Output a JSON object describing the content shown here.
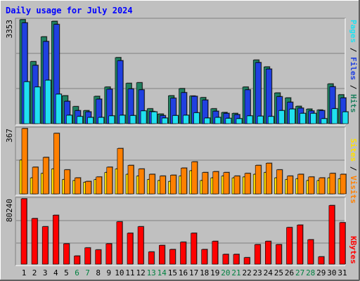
{
  "title": "Daily usage for July 2024",
  "colors": {
    "frame": "#c0c0c0",
    "plot": "#c0c0c0",
    "grid": "#808080",
    "title": "#0000ff",
    "weekday": "#000000",
    "weekend": "#008040",
    "hits": "#208060",
    "files": "#2040e0",
    "pages": "#20e0f0",
    "visits": "#ff8000",
    "sites": "#ffe000",
    "kbytes": "#ff0000"
  },
  "chart_data": [
    {
      "type": "bar",
      "name": "hits-files-pages",
      "categories": [
        "1",
        "2",
        "3",
        "4",
        "5",
        "6",
        "7",
        "8",
        "9",
        "10",
        "11",
        "12",
        "13",
        "14",
        "15",
        "16",
        "17",
        "18",
        "19",
        "20",
        "21",
        "22",
        "23",
        "24",
        "25",
        "26",
        "27",
        "28",
        "29",
        "30",
        "31"
      ],
      "weekend_days": [
        "6",
        "7",
        "13",
        "14",
        "20",
        "21",
        "27",
        "28"
      ],
      "ymax": 3353,
      "axis_label": "3353",
      "legend": [
        "Pages",
        "/",
        "Files",
        "/",
        "Hits"
      ],
      "series": [
        {
          "name": "Hits",
          "values": [
            3353,
            2000,
            2800,
            3300,
            900,
            550,
            420,
            880,
            1180,
            2130,
            1300,
            1320,
            480,
            310,
            900,
            1130,
            890,
            840,
            480,
            360,
            330,
            1180,
            2050,
            1830,
            990,
            830,
            560,
            470,
            440,
            1280,
            930
          ]
        },
        {
          "name": "Files",
          "values": [
            3250,
            1880,
            2650,
            3200,
            720,
            420,
            380,
            790,
            1110,
            2030,
            1120,
            1090,
            390,
            260,
            820,
            1000,
            880,
            760,
            400,
            330,
            290,
            1090,
            1970,
            1760,
            870,
            690,
            500,
            410,
            420,
            1190,
            830
          ]
        },
        {
          "name": "Pages",
          "values": [
            1350,
            1180,
            1400,
            950,
            270,
            230,
            200,
            200,
            250,
            270,
            260,
            410,
            380,
            180,
            260,
            270,
            350,
            180,
            200,
            170,
            160,
            250,
            240,
            230,
            420,
            470,
            330,
            330,
            160,
            480,
            380
          ]
        }
      ]
    },
    {
      "type": "bar",
      "name": "visits-sites",
      "categories": [
        "1",
        "2",
        "3",
        "4",
        "5",
        "6",
        "7",
        "8",
        "9",
        "10",
        "11",
        "12",
        "13",
        "14",
        "15",
        "16",
        "17",
        "18",
        "19",
        "20",
        "21",
        "22",
        "23",
        "24",
        "25",
        "26",
        "27",
        "28",
        "29",
        "30",
        "31"
      ],
      "ymax": 367,
      "axis_label": "367",
      "legend": [
        "Sites",
        "/",
        "Visits"
      ],
      "series": [
        {
          "name": "Visits",
          "values": [
            367,
            150,
            205,
            340,
            135,
            90,
            70,
            95,
            150,
            255,
            160,
            140,
            110,
            100,
            105,
            145,
            180,
            120,
            125,
            120,
            100,
            115,
            160,
            172,
            135,
            100,
            110,
            95,
            90,
            115,
            110
          ]
        },
        {
          "name": "Sites",
          "values": [
            190,
            90,
            115,
            140,
            80,
            75,
            65,
            80,
            120,
            140,
            110,
            100,
            80,
            75,
            70,
            100,
            130,
            75,
            90,
            100,
            90,
            95,
            110,
            120,
            90,
            80,
            85,
            75,
            75,
            90,
            85
          ]
        }
      ]
    },
    {
      "type": "bar",
      "name": "kbytes",
      "categories": [
        "1",
        "2",
        "3",
        "4",
        "5",
        "6",
        "7",
        "8",
        "9",
        "10",
        "11",
        "12",
        "13",
        "14",
        "15",
        "16",
        "17",
        "18",
        "19",
        "20",
        "21",
        "22",
        "23",
        "24",
        "25",
        "26",
        "27",
        "28",
        "29",
        "30",
        "31"
      ],
      "ymax": 80240,
      "axis_label": "80240",
      "legend": [
        "KBytes"
      ],
      "series": [
        {
          "name": "KBytes",
          "values": [
            80240,
            56000,
            46000,
            60000,
            25000,
            10000,
            20000,
            17500,
            25000,
            52000,
            38000,
            46000,
            15000,
            23000,
            18000,
            27000,
            38000,
            18000,
            28000,
            12000,
            12000,
            8000,
            24000,
            28000,
            24000,
            45000,
            48000,
            30000,
            9000,
            72000,
            51000
          ]
        }
      ]
    }
  ]
}
